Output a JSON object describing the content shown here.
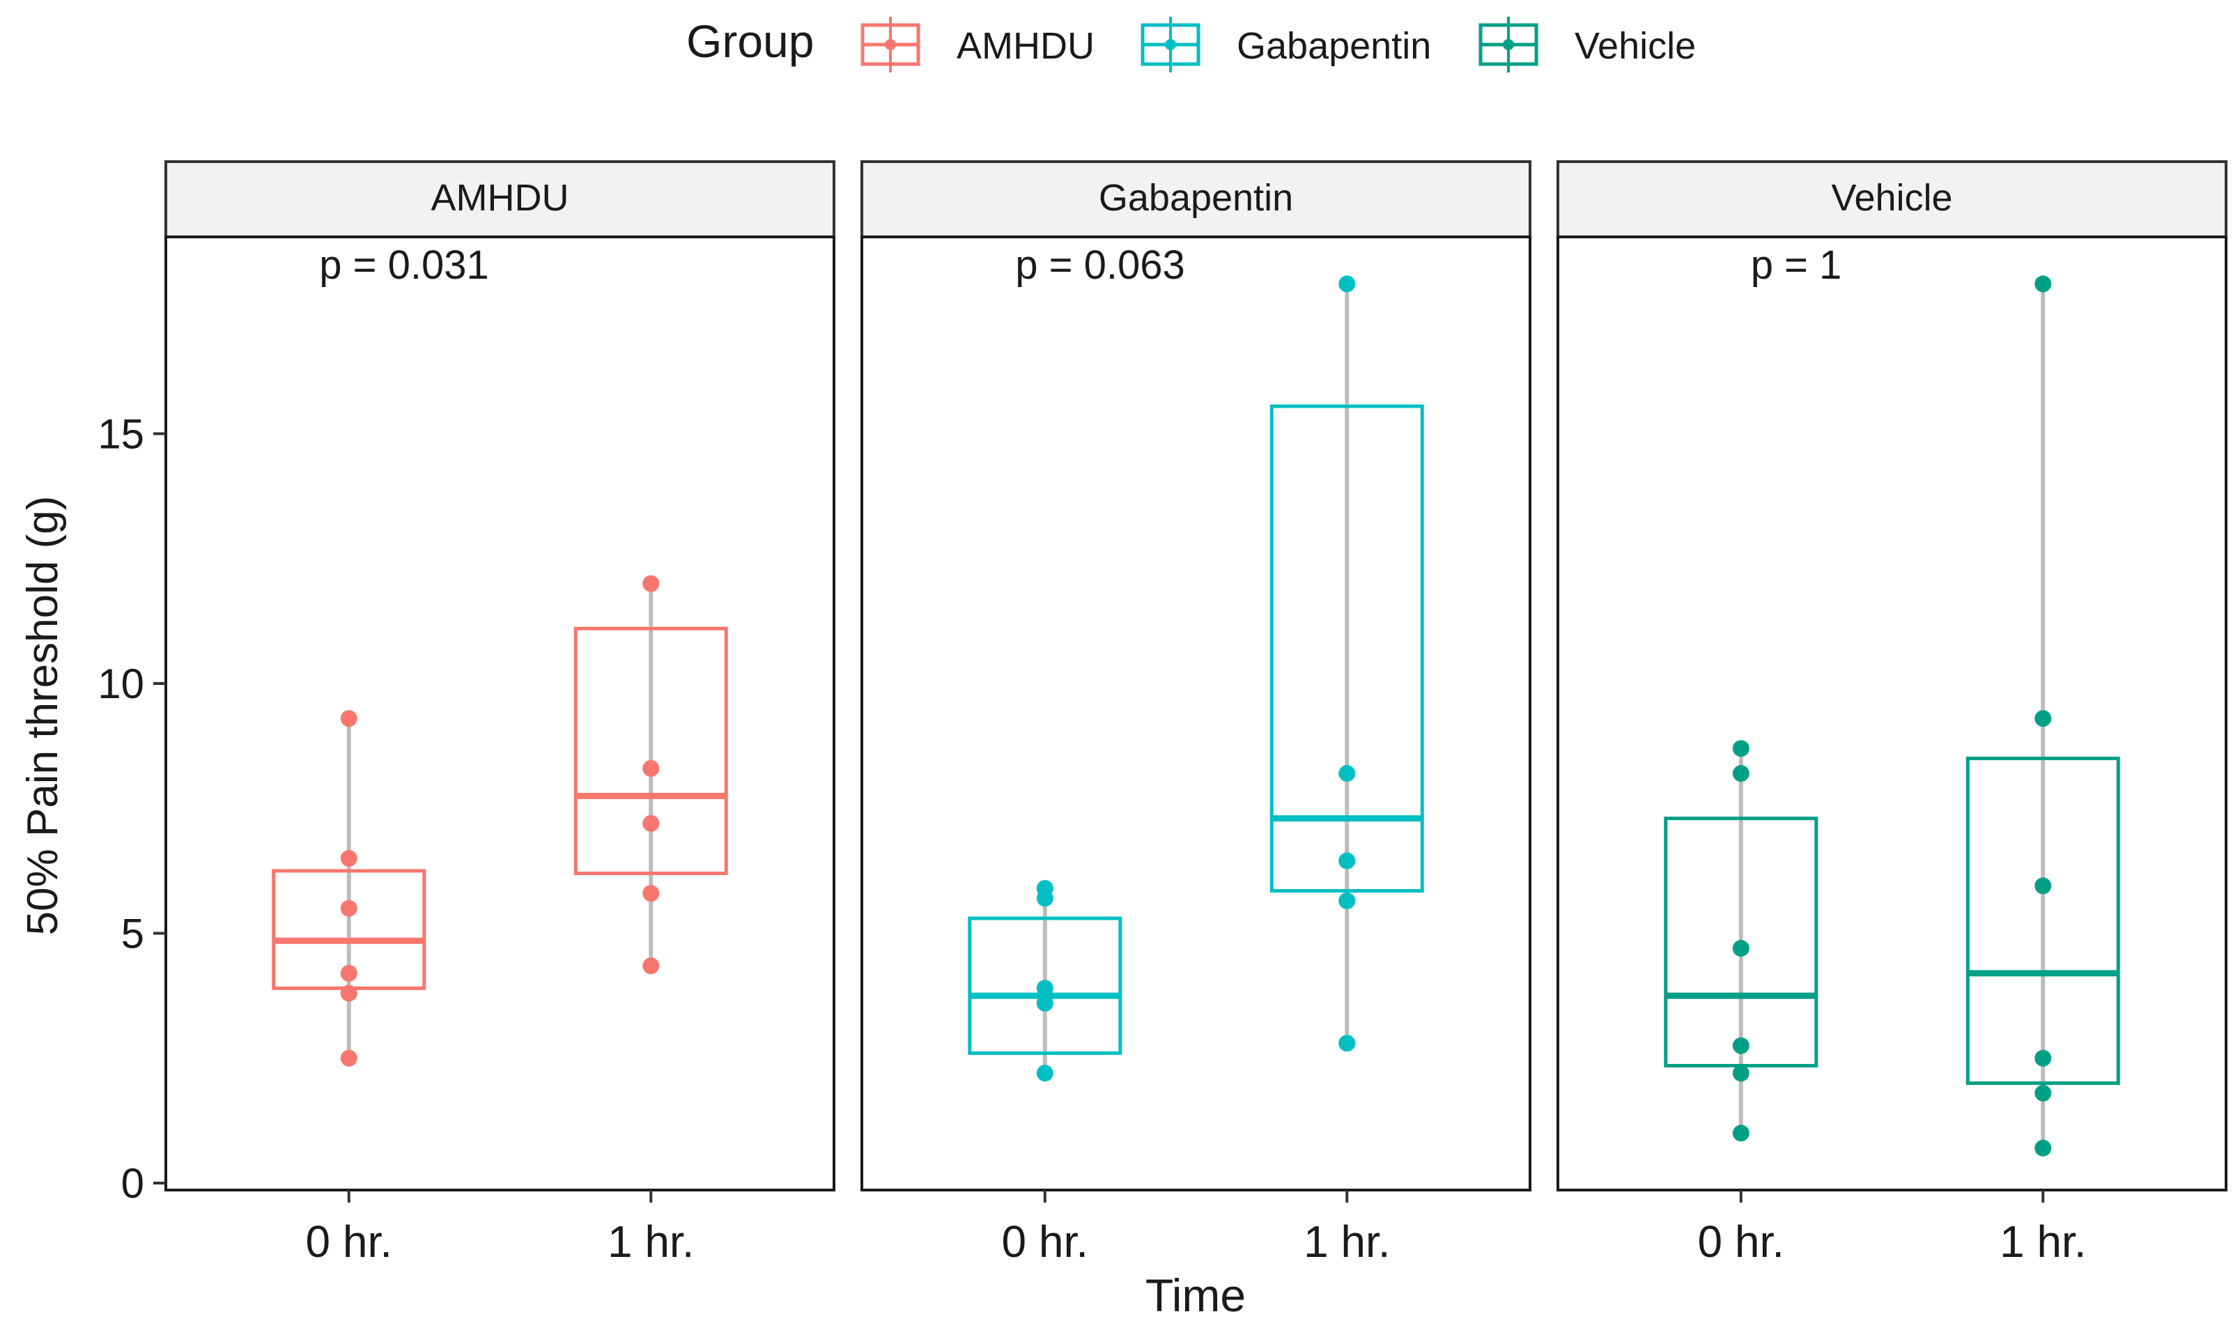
{
  "legend": {
    "title": "Group",
    "items": [
      {
        "label": "AMHDU",
        "color": "#F8766D"
      },
      {
        "label": "Gabapentin",
        "color": "#00BFC4"
      },
      {
        "label": "Vehicle",
        "color": "#00A087"
      }
    ]
  },
  "chart_data": {
    "type": "box",
    "xlabel": "Time",
    "ylabel": "50% Pain threshold (g)",
    "ylim": [
      0,
      18.9
    ],
    "yticks": [
      0,
      5,
      10,
      15
    ],
    "categories": [
      "0 hr.",
      "1 hr."
    ],
    "grid": false,
    "legend_position": "top",
    "panels": [
      {
        "title": "AMHDU",
        "p_label": "p = 0.031",
        "color": "#F8766D",
        "boxes": [
          {
            "category": "0 hr.",
            "q1": 3.9,
            "median": 4.85,
            "q3": 6.25,
            "min": 2.5,
            "max": 9.3,
            "points": [
              2.5,
              3.8,
              4.2,
              5.5,
              6.5,
              9.3
            ]
          },
          {
            "category": "1 hr.",
            "q1": 6.2,
            "median": 7.75,
            "q3": 11.1,
            "min": 4.35,
            "max": 12.0,
            "points": [
              4.35,
              5.8,
              7.2,
              8.3,
              12.0
            ]
          }
        ]
      },
      {
        "title": "Gabapentin",
        "p_label": "p = 0.063",
        "color": "#00BFC4",
        "boxes": [
          {
            "category": "0 hr.",
            "q1": 2.6,
            "median": 3.75,
            "q3": 5.3,
            "min": 2.2,
            "max": 5.9,
            "points": [
              2.2,
              3.6,
              3.75,
              3.9,
              5.7,
              5.9
            ]
          },
          {
            "category": "1 hr.",
            "q1": 5.85,
            "median": 7.3,
            "q3": 15.55,
            "min": 2.8,
            "max": 18.0,
            "points": [
              2.8,
              5.65,
              6.45,
              8.2,
              18.0
            ]
          }
        ]
      },
      {
        "title": "Vehicle",
        "p_label": "p = 1",
        "color": "#00A087",
        "boxes": [
          {
            "category": "0 hr.",
            "q1": 2.35,
            "median": 3.75,
            "q3": 7.3,
            "min": 1.0,
            "max": 8.7,
            "points": [
              1.0,
              2.2,
              2.75,
              4.7,
              8.2,
              8.7
            ]
          },
          {
            "category": "1 hr.",
            "q1": 2.0,
            "median": 4.2,
            "q3": 8.5,
            "min": 0.7,
            "max": 18.0,
            "points": [
              0.7,
              1.8,
              2.5,
              5.95,
              9.3,
              18.0
            ]
          }
        ]
      }
    ]
  }
}
